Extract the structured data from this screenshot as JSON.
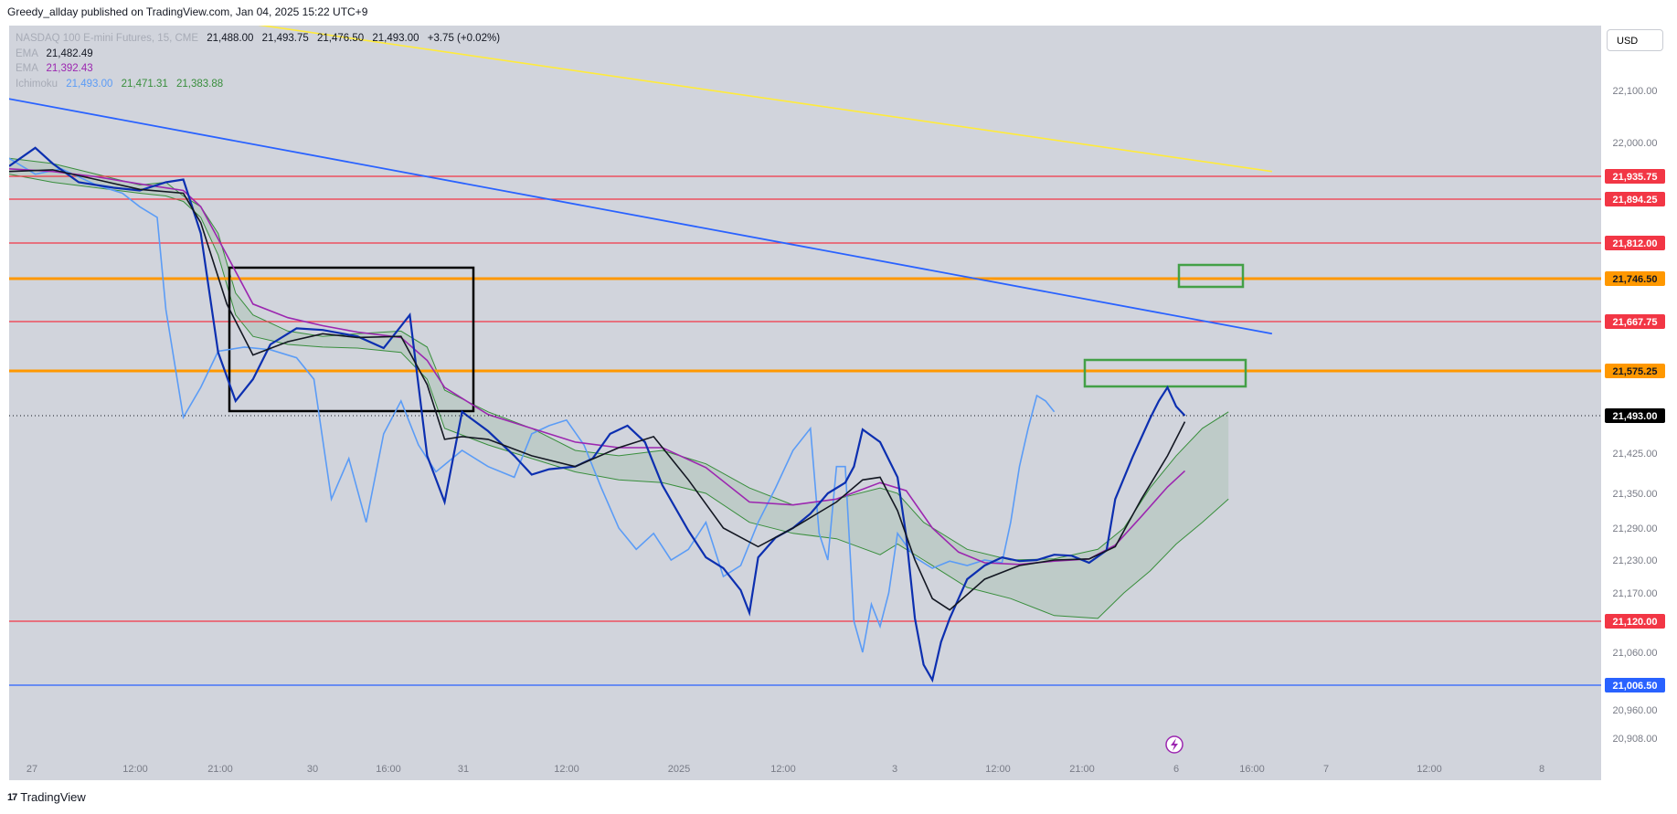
{
  "header": {
    "published": "Greedy_allday published on TradingView.com, Jan 04, 2025 15:22 UTC+9"
  },
  "legend": {
    "symbol": "NASDAQ 100 E-mini Futures, 15, CME",
    "o": "21,488.00",
    "h": "21,493.75",
    "l": "21,476.50",
    "c": "21,493.00",
    "chg": "+3.75 (+0.02%)",
    "ema1_label": "EMA",
    "ema1_value": "21,482.49",
    "ema2_label": "EMA",
    "ema2_value": "21,392.43",
    "ichi_label": "Ichimoku",
    "ichi_v1": "21,493.00",
    "ichi_v2": "21,471.31",
    "ichi_v3": "21,383.88"
  },
  "currency": "USD",
  "footer": {
    "brand": "TradingView",
    "logo": "17"
  },
  "colors": {
    "bg": "#d1d4dc",
    "red": "#f23645",
    "orange": "#ff9800",
    "blue_trend": "#2962ff",
    "yellow": "#ffeb3b",
    "green_box": "#43a047",
    "lagging": "#5b9cf6",
    "ema1": "#131722",
    "ema2": "#9c27b0",
    "cloud": "#388e3c"
  },
  "chart_data": {
    "type": "line",
    "symbol": "NASDAQ 100 E-mini Futures",
    "interval": "15",
    "y_ticks": [
      22100,
      22000,
      21425,
      21350,
      21290,
      21230,
      21170,
      21060,
      20960,
      20908
    ],
    "y_tick_labels": [
      "22,100.00",
      "22,000.00",
      "21,425.00",
      "21,350.00",
      "21,290.00",
      "21,230.00",
      "21,170.00",
      "21,060.00",
      "20,960.00",
      "20,908.00"
    ],
    "x_ticks": [
      "27",
      "12:00",
      "21:00",
      "30",
      "16:00",
      "31",
      "12:00",
      "2025",
      "12:00",
      "3",
      "12:00",
      "21:00",
      "6",
      "16:00",
      "7",
      "12:00",
      "8"
    ],
    "levels": [
      {
        "value": 21935.75,
        "label": "21,935.75",
        "color": "red"
      },
      {
        "value": 21894.25,
        "label": "21,894.25",
        "color": "red"
      },
      {
        "value": 21812.0,
        "label": "21,812.00",
        "color": "red"
      },
      {
        "value": 21746.5,
        "label": "21,746.50",
        "color": "orange"
      },
      {
        "value": 21667.75,
        "label": "21,667.75",
        "color": "red"
      },
      {
        "value": 21575.25,
        "label": "21,575.25",
        "color": "orange"
      },
      {
        "value": 21120.0,
        "label": "21,120.00",
        "color": "red"
      },
      {
        "value": 21006.5,
        "label": "21,006.50",
        "color": "blue"
      }
    ],
    "last_price": {
      "value": 21493.0,
      "label": "21,493.00"
    },
    "price_path": [
      [
        0,
        21955
      ],
      [
        3,
        21990
      ],
      [
        5,
        21960
      ],
      [
        8,
        21925
      ],
      [
        12,
        21915
      ],
      [
        15,
        21910
      ],
      [
        18,
        21925
      ],
      [
        20,
        21930
      ],
      [
        22,
        21830
      ],
      [
        24,
        21610
      ],
      [
        26,
        21520
      ],
      [
        28,
        21560
      ],
      [
        30,
        21625
      ],
      [
        33,
        21655
      ],
      [
        36,
        21652
      ],
      [
        40,
        21640
      ],
      [
        43,
        21618
      ],
      [
        46,
        21680
      ],
      [
        48,
        21420
      ],
      [
        50,
        21335
      ],
      [
        52,
        21500
      ],
      [
        55,
        21465
      ],
      [
        58,
        21420
      ],
      [
        60,
        21385
      ],
      [
        62,
        21395
      ],
      [
        65,
        21400
      ],
      [
        67,
        21415
      ],
      [
        69,
        21460
      ],
      [
        71,
        21475
      ],
      [
        73,
        21445
      ],
      [
        75,
        21365
      ],
      [
        78,
        21285
      ],
      [
        80,
        21235
      ],
      [
        82,
        21215
      ],
      [
        84,
        21175
      ],
      [
        85,
        21135
      ],
      [
        86,
        21235
      ],
      [
        88,
        21272
      ],
      [
        90,
        21290
      ],
      [
        92,
        21315
      ],
      [
        94,
        21350
      ],
      [
        96,
        21370
      ],
      [
        97,
        21400
      ],
      [
        98,
        21468
      ],
      [
        100,
        21445
      ],
      [
        102,
        21380
      ],
      [
        103,
        21275
      ],
      [
        104,
        21125
      ],
      [
        105,
        21040
      ],
      [
        106,
        21015
      ],
      [
        107,
        21080
      ],
      [
        108,
        21125
      ],
      [
        110,
        21195
      ],
      [
        112,
        21220
      ],
      [
        114,
        21235
      ],
      [
        116,
        21228
      ],
      [
        118,
        21230
      ],
      [
        120,
        21240
      ],
      [
        122,
        21238
      ],
      [
        124,
        21225
      ],
      [
        126,
        21248
      ],
      [
        127,
        21340
      ],
      [
        129,
        21418
      ],
      [
        131,
        21488
      ],
      [
        132,
        21520
      ],
      [
        133,
        21545
      ],
      [
        134,
        21510
      ],
      [
        135,
        21493
      ]
    ],
    "ema_fast": [
      [
        0,
        21945
      ],
      [
        5,
        21948
      ],
      [
        10,
        21930
      ],
      [
        15,
        21912
      ],
      [
        20,
        21905
      ],
      [
        22,
        21850
      ],
      [
        25,
        21700
      ],
      [
        28,
        21605
      ],
      [
        32,
        21630
      ],
      [
        36,
        21645
      ],
      [
        40,
        21638
      ],
      [
        45,
        21640
      ],
      [
        48,
        21550
      ],
      [
        50,
        21450
      ],
      [
        52,
        21455
      ],
      [
        55,
        21450
      ],
      [
        60,
        21420
      ],
      [
        65,
        21400
      ],
      [
        70,
        21435
      ],
      [
        74,
        21455
      ],
      [
        78,
        21375
      ],
      [
        82,
        21290
      ],
      [
        86,
        21255
      ],
      [
        90,
        21290
      ],
      [
        95,
        21335
      ],
      [
        98,
        21375
      ],
      [
        100,
        21380
      ],
      [
        102,
        21320
      ],
      [
        104,
        21230
      ],
      [
        106,
        21160
      ],
      [
        108,
        21140
      ],
      [
        112,
        21195
      ],
      [
        116,
        21220
      ],
      [
        120,
        21230
      ],
      [
        124,
        21232
      ],
      [
        127,
        21255
      ],
      [
        130,
        21340
      ],
      [
        133,
        21420
      ],
      [
        135,
        21482
      ]
    ],
    "ema_slow": [
      [
        0,
        21950
      ],
      [
        5,
        21945
      ],
      [
        10,
        21935
      ],
      [
        15,
        21922
      ],
      [
        20,
        21910
      ],
      [
        22,
        21880
      ],
      [
        25,
        21790
      ],
      [
        28,
        21700
      ],
      [
        32,
        21675
      ],
      [
        36,
        21660
      ],
      [
        40,
        21648
      ],
      [
        45,
        21638
      ],
      [
        48,
        21595
      ],
      [
        50,
        21545
      ],
      [
        55,
        21495
      ],
      [
        60,
        21470
      ],
      [
        65,
        21445
      ],
      [
        70,
        21435
      ],
      [
        75,
        21435
      ],
      [
        80,
        21398
      ],
      [
        85,
        21335
      ],
      [
        90,
        21330
      ],
      [
        95,
        21340
      ],
      [
        100,
        21370
      ],
      [
        103,
        21355
      ],
      [
        106,
        21290
      ],
      [
        109,
        21245
      ],
      [
        112,
        21225
      ],
      [
        116,
        21222
      ],
      [
        120,
        21228
      ],
      [
        124,
        21232
      ],
      [
        127,
        21258
      ],
      [
        130,
        21310
      ],
      [
        133,
        21362
      ],
      [
        135,
        21392
      ]
    ],
    "lagging_span": [
      [
        0,
        21970
      ],
      [
        3,
        21940
      ],
      [
        6,
        21950
      ],
      [
        10,
        21920
      ],
      [
        13,
        21905
      ],
      [
        15,
        21880
      ],
      [
        17,
        21860
      ],
      [
        18,
        21690
      ],
      [
        20,
        21490
      ],
      [
        22,
        21545
      ],
      [
        24,
        21612
      ],
      [
        27,
        21620
      ],
      [
        30,
        21615
      ],
      [
        33,
        21600
      ],
      [
        35,
        21560
      ],
      [
        37,
        21340
      ],
      [
        39,
        21415
      ],
      [
        41,
        21300
      ],
      [
        43,
        21460
      ],
      [
        45,
        21520
      ],
      [
        47,
        21440
      ],
      [
        49,
        21390
      ],
      [
        52,
        21430
      ],
      [
        55,
        21400
      ],
      [
        58,
        21380
      ],
      [
        60,
        21460
      ],
      [
        62,
        21475
      ],
      [
        64,
        21485
      ],
      [
        66,
        21440
      ],
      [
        68,
        21360
      ],
      [
        70,
        21290
      ],
      [
        72,
        21250
      ],
      [
        74,
        21280
      ],
      [
        76,
        21230
      ],
      [
        78,
        21250
      ],
      [
        80,
        21300
      ],
      [
        82,
        21200
      ],
      [
        84,
        21220
      ],
      [
        86,
        21300
      ],
      [
        88,
        21360
      ],
      [
        90,
        21430
      ],
      [
        92,
        21470
      ],
      [
        93,
        21280
      ],
      [
        94,
        21230
      ],
      [
        95,
        21400
      ],
      [
        96,
        21400
      ],
      [
        97,
        21120
      ],
      [
        98,
        21060
      ],
      [
        99,
        21150
      ],
      [
        100,
        21110
      ],
      [
        101,
        21170
      ],
      [
        102,
        21280
      ],
      [
        104,
        21235
      ],
      [
        106,
        21215
      ],
      [
        108,
        21228
      ],
      [
        110,
        21220
      ],
      [
        112,
        21230
      ],
      [
        114,
        21225
      ],
      [
        115,
        21300
      ],
      [
        116,
        21400
      ],
      [
        117,
        21470
      ],
      [
        118,
        21530
      ],
      [
        119,
        21520
      ],
      [
        120,
        21500
      ]
    ],
    "cloud_span_a": [
      [
        0,
        21970
      ],
      [
        5,
        21960
      ],
      [
        10,
        21940
      ],
      [
        15,
        21920
      ],
      [
        18,
        21925
      ],
      [
        20,
        21900
      ],
      [
        22,
        21880
      ],
      [
        24,
        21830
      ],
      [
        26,
        21720
      ],
      [
        28,
        21680
      ],
      [
        32,
        21650
      ],
      [
        36,
        21640
      ],
      [
        40,
        21645
      ],
      [
        45,
        21650
      ],
      [
        48,
        21620
      ],
      [
        50,
        21540
      ],
      [
        55,
        21500
      ],
      [
        60,
        21470
      ],
      [
        65,
        21430
      ],
      [
        70,
        21420
      ],
      [
        75,
        21430
      ],
      [
        80,
        21405
      ],
      [
        85,
        21360
      ],
      [
        90,
        21330
      ],
      [
        95,
        21340
      ],
      [
        100,
        21360
      ],
      [
        102,
        21350
      ],
      [
        105,
        21300
      ],
      [
        110,
        21250
      ],
      [
        115,
        21230
      ],
      [
        120,
        21232
      ],
      [
        125,
        21250
      ],
      [
        128,
        21290
      ],
      [
        131,
        21360
      ],
      [
        134,
        21420
      ],
      [
        137,
        21470
      ],
      [
        140,
        21500
      ]
    ],
    "cloud_span_b": [
      [
        0,
        21940
      ],
      [
        5,
        21925
      ],
      [
        10,
        21915
      ],
      [
        15,
        21905
      ],
      [
        18,
        21900
      ],
      [
        20,
        21890
      ],
      [
        22,
        21860
      ],
      [
        24,
        21790
      ],
      [
        26,
        21680
      ],
      [
        28,
        21640
      ],
      [
        32,
        21625
      ],
      [
        36,
        21620
      ],
      [
        40,
        21618
      ],
      [
        45,
        21610
      ],
      [
        48,
        21560
      ],
      [
        50,
        21470
      ],
      [
        55,
        21440
      ],
      [
        60,
        21415
      ],
      [
        65,
        21390
      ],
      [
        70,
        21375
      ],
      [
        75,
        21370
      ],
      [
        80,
        21350
      ],
      [
        85,
        21300
      ],
      [
        90,
        21280
      ],
      [
        95,
        21270
      ],
      [
        100,
        21240
      ],
      [
        102,
        21260
      ],
      [
        105,
        21230
      ],
      [
        110,
        21180
      ],
      [
        115,
        21160
      ],
      [
        120,
        21130
      ],
      [
        125,
        21125
      ],
      [
        128,
        21170
      ],
      [
        131,
        21210
      ],
      [
        134,
        21260
      ],
      [
        137,
        21300
      ],
      [
        140,
        21340
      ]
    ],
    "trendlines": [
      {
        "name": "blue",
        "from": [
          -2,
          22090
        ],
        "to": [
          145,
          21645
        ]
      },
      {
        "name": "yellow",
        "from": [
          -2,
          22300
        ],
        "to": [
          145,
          21945
        ]
      }
    ]
  }
}
